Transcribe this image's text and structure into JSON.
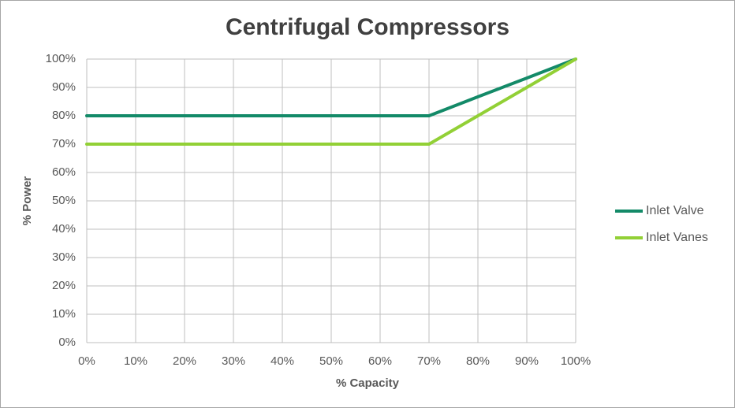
{
  "chart_data": {
    "type": "line",
    "title": "Centrifugal Compressors",
    "x_label": "% Capacity",
    "y_label": "% Power",
    "x": [
      0,
      10,
      20,
      30,
      40,
      50,
      60,
      70,
      80,
      90,
      100
    ],
    "series": [
      {
        "name": "Inlet Valve",
        "color": "#138a68",
        "values": [
          80,
          80,
          80,
          80,
          80,
          80,
          80,
          80,
          86.7,
          93.3,
          100
        ]
      },
      {
        "name": "Inlet Vanes",
        "color": "#92d036",
        "values": [
          70,
          70,
          70,
          70,
          70,
          70,
          70,
          70,
          80,
          90,
          100
        ]
      }
    ],
    "xlim": [
      0,
      100
    ],
    "ylim": [
      0,
      100
    ],
    "xticks": [
      {
        "value": 0,
        "label": "0%"
      },
      {
        "value": 10,
        "label": "10%"
      },
      {
        "value": 20,
        "label": "20%"
      },
      {
        "value": 30,
        "label": "30%"
      },
      {
        "value": 40,
        "label": "40%"
      },
      {
        "value": 50,
        "label": "50%"
      },
      {
        "value": 60,
        "label": "60%"
      },
      {
        "value": 70,
        "label": "70%"
      },
      {
        "value": 80,
        "label": "80%"
      },
      {
        "value": 90,
        "label": "90%"
      },
      {
        "value": 100,
        "label": "100%"
      }
    ],
    "yticks": [
      {
        "value": 0,
        "label": "0%"
      },
      {
        "value": 10,
        "label": "10%"
      },
      {
        "value": 20,
        "label": "20%"
      },
      {
        "value": 30,
        "label": "30%"
      },
      {
        "value": 40,
        "label": "40%"
      },
      {
        "value": 50,
        "label": "50%"
      },
      {
        "value": 60,
        "label": "60%"
      },
      {
        "value": 70,
        "label": "70%"
      },
      {
        "value": 80,
        "label": "80%"
      },
      {
        "value": 90,
        "label": "90%"
      },
      {
        "value": 100,
        "label": "100%"
      }
    ],
    "grid": true,
    "legend": "right"
  }
}
